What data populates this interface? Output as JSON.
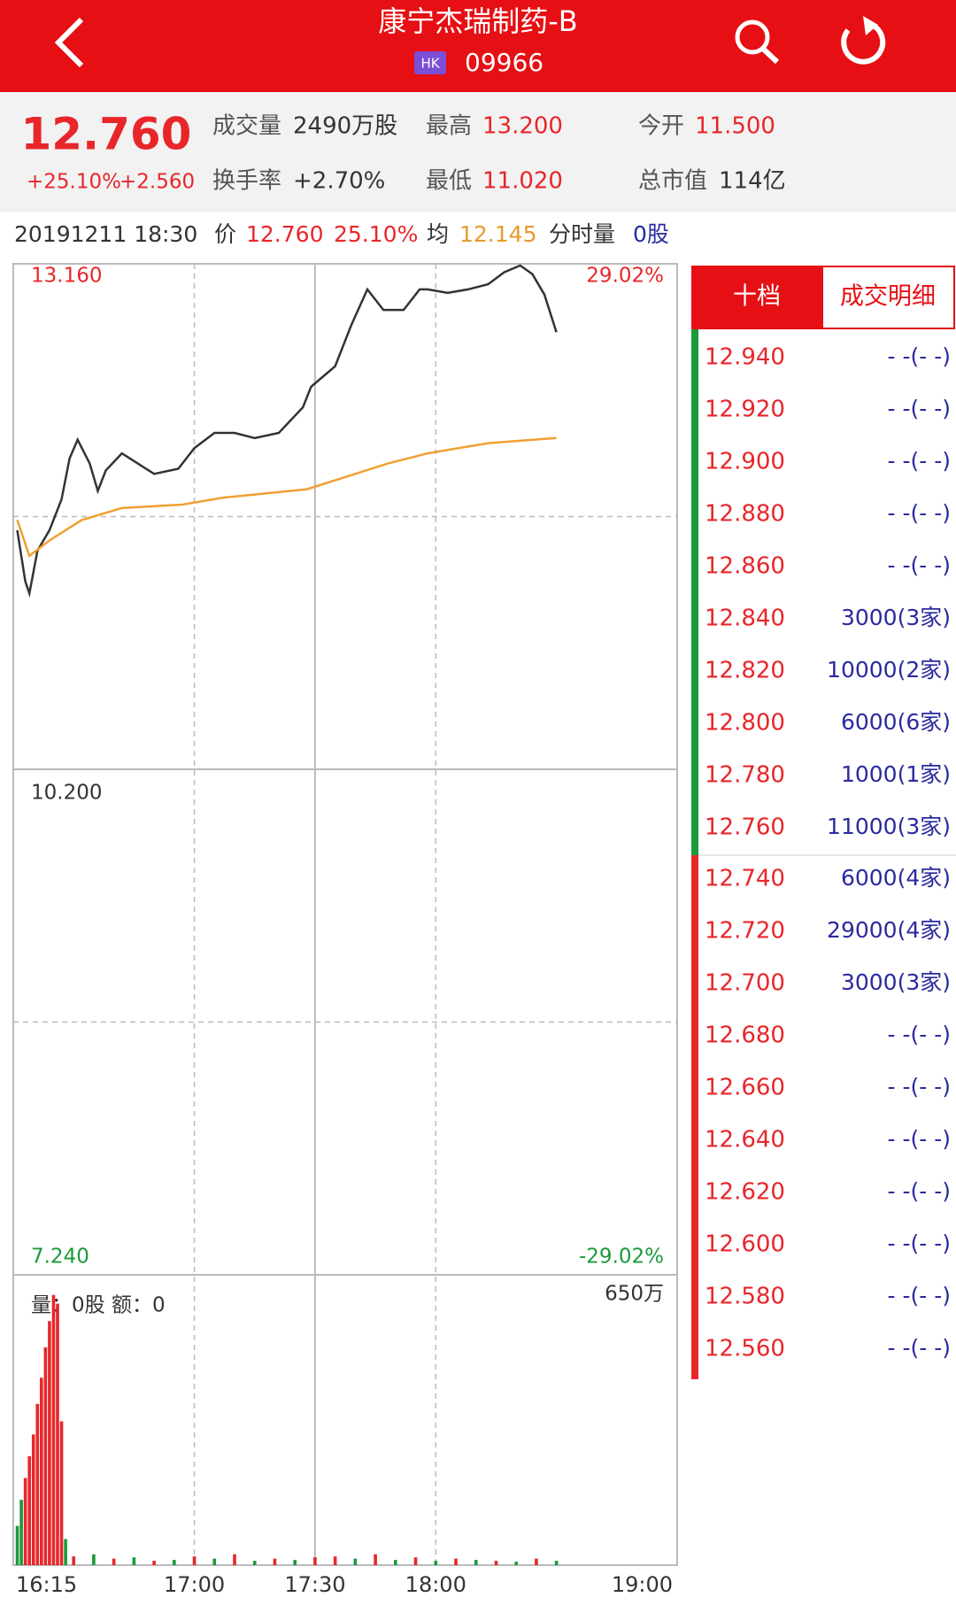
{
  "header": {
    "title": "康宁杰瑞制药-B",
    "market": "HK",
    "code": "09966"
  },
  "quote": {
    "price": "12.760",
    "change_pct": "+25.10%",
    "change": "+2.560",
    "fields": [
      {
        "label": "成交量",
        "value": "2490万股",
        "color": "#333333"
      },
      {
        "label": "最高",
        "value": "13.200",
        "color": "#e8262a"
      },
      {
        "label": "今开",
        "value": "11.500",
        "color": "#e8262a"
      },
      {
        "label": "换手率",
        "value": "+2.70%",
        "color": "#333333"
      },
      {
        "label": "最低",
        "value": "11.020",
        "color": "#e8262a"
      },
      {
        "label": "总市值",
        "value": "114亿",
        "color": "#333333"
      }
    ]
  },
  "info_bar": [
    {
      "text": "20191211 18:30",
      "color": "#333333"
    },
    {
      "text": "价",
      "color": "#333333"
    },
    {
      "text": "12.760",
      "color": "#e8262a"
    },
    {
      "text": "25.10%",
      "color": "#e8262a"
    },
    {
      "text": "均",
      "color": "#333333"
    },
    {
      "text": "12.145",
      "color": "#e89a2a"
    },
    {
      "text": "分时量",
      "color": "#333333"
    },
    {
      "text": "0股",
      "color": "#2a2aa0"
    }
  ],
  "chart_data": {
    "type": "line",
    "xlim": [
      "16:15",
      "19:00"
    ],
    "xticks": [
      "16:15",
      "17:00",
      "17:30",
      "18:00",
      "19:00"
    ],
    "ylim": [
      7.24,
      13.16
    ],
    "yticks": [
      {
        "value": 13.16,
        "label": "13.160"
      },
      {
        "value": 10.2,
        "label": "10.200"
      },
      {
        "value": 7.24,
        "label": "7.240"
      }
    ],
    "percent_labels": [
      "29.02%",
      "-29.02%"
    ],
    "series": [
      {
        "color": "#333333",
        "x": [
          "16:16",
          "16:18",
          "16:19",
          "16:21",
          "16:24",
          "16:27",
          "16:29",
          "16:31",
          "16:34",
          "16:36",
          "16:38",
          "16:42",
          "16:46",
          "16:50",
          "16:56",
          "17:00",
          "17:05",
          "17:10",
          "17:15",
          "17:21",
          "17:27",
          "17:29",
          "17:35",
          "17:39",
          "17:43",
          "17:47",
          "17:52",
          "17:56",
          "17:58",
          "18:03",
          "18:08",
          "18:13",
          "18:17",
          "18:21",
          "18:24",
          "18:27",
          "18:30"
        ],
        "values": [
          11.6,
          11.3,
          11.23,
          11.48,
          11.6,
          11.78,
          12.02,
          12.13,
          11.99,
          11.83,
          11.95,
          12.05,
          11.99,
          11.93,
          11.96,
          12.08,
          12.17,
          12.17,
          12.14,
          12.17,
          12.32,
          12.44,
          12.56,
          12.8,
          13.01,
          12.89,
          12.89,
          13.01,
          13.01,
          12.99,
          13.01,
          13.04,
          13.11,
          13.15,
          13.1,
          12.98,
          12.76
        ]
      },
      {
        "color": "#f0a030",
        "x": [
          "16:16",
          "16:19",
          "16:24",
          "16:32",
          "16:42",
          "16:57",
          "17:07",
          "17:28",
          "17:40",
          "17:48",
          "17:58",
          "18:13",
          "18:30"
        ],
        "values": [
          11.66,
          11.45,
          11.54,
          11.66,
          11.73,
          11.75,
          11.79,
          11.84,
          11.93,
          11.99,
          12.05,
          12.11,
          12.14
        ]
      }
    ],
    "volume": {
      "type": "bar",
      "label": "量：0股 额：0",
      "ylim": [
        0,
        650
      ],
      "yticks": [
        {
          "value": 650,
          "label": "650万"
        }
      ],
      "x": [
        "16:16",
        "16:17",
        "16:18",
        "16:19",
        "16:20",
        "16:21",
        "16:22",
        "16:23",
        "16:24",
        "16:25",
        "16:26",
        "16:27",
        "16:28",
        "16:30",
        "16:35",
        "16:40",
        "16:45",
        "16:50",
        "16:55",
        "17:00",
        "17:05",
        "17:10",
        "17:15",
        "17:20",
        "17:25",
        "17:30",
        "17:35",
        "17:40",
        "17:45",
        "17:50",
        "17:55",
        "18:00",
        "18:05",
        "18:10",
        "18:15",
        "18:20",
        "18:25",
        "18:30"
      ],
      "values": [
        90,
        150,
        200,
        250,
        300,
        370,
        430,
        500,
        560,
        620,
        600,
        330,
        60,
        20,
        25,
        15,
        18,
        10,
        12,
        20,
        15,
        25,
        10,
        15,
        12,
        18,
        20,
        15,
        25,
        12,
        18,
        10,
        15,
        12,
        10,
        8,
        15,
        10
      ],
      "colors": [
        "#1a9a3a",
        "#1a9a3a",
        "#e8262a",
        "#e8262a",
        "#e8262a",
        "#e8262a",
        "#e8262a",
        "#e8262a",
        "#e8262a",
        "#e8262a",
        "#e8262a",
        "#e8262a",
        "#1a9a3a",
        "#e8262a",
        "#1a9a3a",
        "#e8262a",
        "#1a9a3a",
        "#e8262a",
        "#1a9a3a",
        "#e8262a",
        "#1a9a3a",
        "#e8262a",
        "#1a9a3a",
        "#e8262a",
        "#1a9a3a",
        "#e8262a",
        "#e8262a",
        "#1a9a3a",
        "#e8262a",
        "#1a9a3a",
        "#e8262a",
        "#1a9a3a",
        "#e8262a",
        "#1a9a3a",
        "#e8262a",
        "#1a9a3a",
        "#e8262a",
        "#1a9a3a"
      ]
    }
  },
  "order_book": {
    "tabs": [
      "十档",
      "成交明细"
    ],
    "asks": [
      {
        "price": "12.940",
        "qty": "- -(- -)"
      },
      {
        "price": "12.920",
        "qty": "- -(- -)"
      },
      {
        "price": "12.900",
        "qty": "- -(- -)"
      },
      {
        "price": "12.880",
        "qty": "- -(- -)"
      },
      {
        "price": "12.860",
        "qty": "- -(- -)"
      },
      {
        "price": "12.840",
        "qty": "3000(3家)"
      },
      {
        "price": "12.820",
        "qty": "10000(2家)"
      },
      {
        "price": "12.800",
        "qty": "6000(6家)"
      },
      {
        "price": "12.780",
        "qty": "1000(1家)"
      },
      {
        "price": "12.760",
        "qty": "11000(3家)"
      }
    ],
    "bids": [
      {
        "price": "12.740",
        "qty": "6000(4家)"
      },
      {
        "price": "12.720",
        "qty": "29000(4家)"
      },
      {
        "price": "12.700",
        "qty": "3000(3家)"
      },
      {
        "price": "12.680",
        "qty": "- -(- -)"
      },
      {
        "price": "12.660",
        "qty": "- -(- -)"
      },
      {
        "price": "12.640",
        "qty": "- -(- -)"
      },
      {
        "price": "12.620",
        "qty": "- -(- -)"
      },
      {
        "price": "12.600",
        "qty": "- -(- -)"
      },
      {
        "price": "12.580",
        "qty": "- -(- -)"
      },
      {
        "price": "12.560",
        "qty": "- -(- -)"
      }
    ]
  }
}
